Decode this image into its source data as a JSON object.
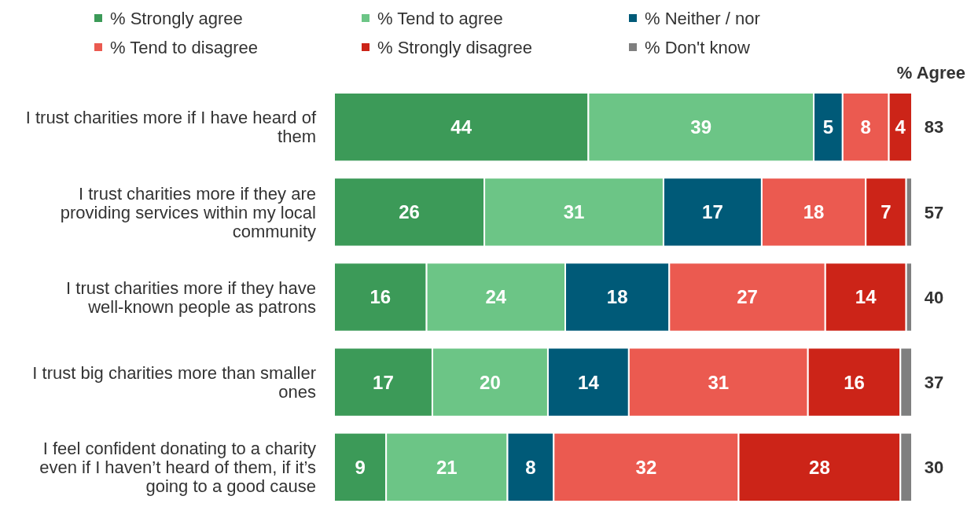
{
  "chart_data": {
    "type": "bar",
    "orientation": "horizontal",
    "stacked": true,
    "legend": "top",
    "data_labels": true,
    "categories": [
      "I trust charities more if I have heard of them",
      "I trust charities more if they are providing services within my local community",
      "I trust charities more if they have well-known people as patrons",
      "I trust big charities more than smaller ones",
      "I feel confident donating to a charity even if I haven’t heard of them, if it’s going to a good cause"
    ],
    "series": [
      {
        "name": "% Strongly agree",
        "color": "#3c9a58",
        "values": [
          44,
          26,
          16,
          17,
          9
        ]
      },
      {
        "name": "% Tend to agree",
        "color": "#6cc586",
        "values": [
          39,
          31,
          24,
          20,
          21
        ]
      },
      {
        "name": "% Neither / nor",
        "color": "#005a78",
        "values": [
          5,
          17,
          18,
          14,
          8
        ]
      },
      {
        "name": "% Tend to disagree",
        "color": "#eb5a50",
        "values": [
          8,
          18,
          27,
          31,
          32
        ]
      },
      {
        "name": "% Strongly disagree",
        "color": "#cc2418",
        "values": [
          4,
          7,
          14,
          16,
          28
        ]
      },
      {
        "name": "% Don't know",
        "color": "#7f7f7f",
        "values": [
          0,
          1,
          1,
          2,
          2
        ],
        "value_labels": [
          null,
          null,
          null,
          null,
          null
        ]
      }
    ],
    "annotations": [
      "% Agree",
      "83",
      "57",
      "40",
      "37",
      "30"
    ]
  }
}
